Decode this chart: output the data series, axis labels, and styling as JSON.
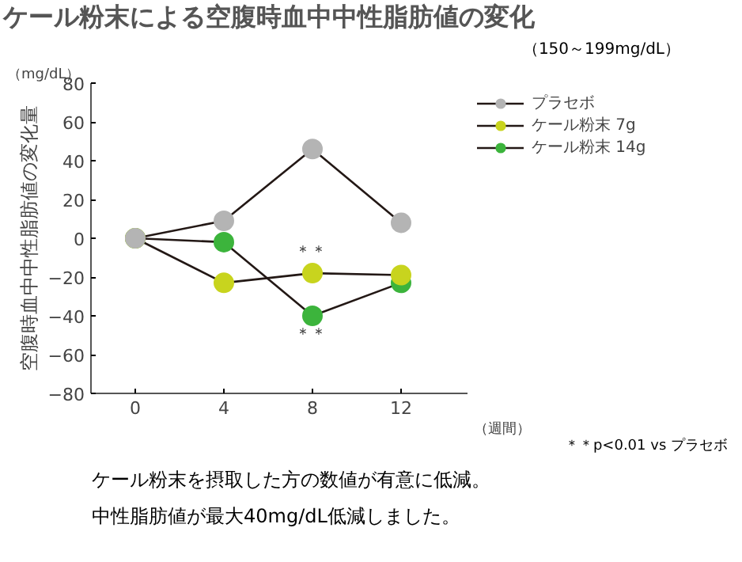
{
  "chart_data": {
    "type": "line",
    "title": "ケール粉末による空腹時血中中性脂肪値の変化",
    "subtitle": "（150～199mg/dL）",
    "ylabel": "空腹時血中中性脂肪値の変化量",
    "xlabel": "（週間）",
    "x": [
      0,
      4,
      8,
      12
    ],
    "xlim": [
      -2,
      15
    ],
    "xticks": [
      0,
      4,
      8,
      12
    ],
    "ylim": [
      -80,
      80
    ],
    "yticks": [
      -80,
      -60,
      -40,
      -20,
      0,
      20,
      40,
      60,
      80
    ],
    "series": [
      {
        "name": "プラセボ",
        "color": "#b4b4b4",
        "values": [
          0,
          9,
          46,
          8
        ]
      },
      {
        "name": "ケール粉末 7g",
        "color": "#c8d41e",
        "values": [
          0,
          -23,
          -18,
          -19
        ]
      },
      {
        "name": "ケール粉末 14g",
        "color": "#3cb43c",
        "values": [
          0,
          -2,
          -40,
          -23
        ]
      }
    ],
    "annotations": [
      "（mg/dL）",
      "＊＊",
      "＊＊",
      "＊＊p<0.01 vs プラセボ",
      "ケール粉末を摂取した方の数値が有意に低減。",
      "中性脂肪値が最大40mg/dL低減しました。"
    ],
    "marker": "circle",
    "line_style": "solid",
    "grid": false,
    "legend": "top right"
  }
}
